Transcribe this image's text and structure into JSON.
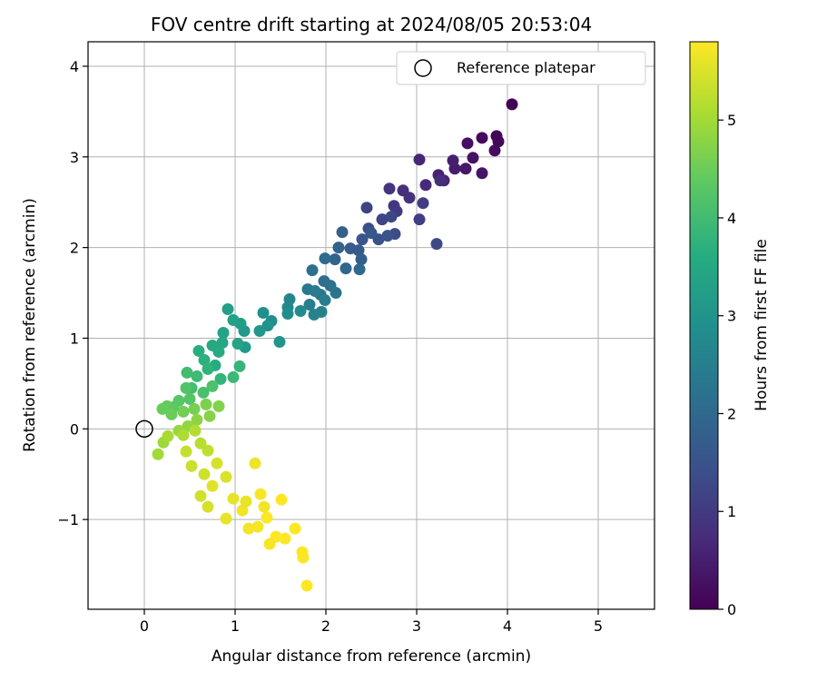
{
  "chart_data": {
    "type": "scatter",
    "title": "FOV centre drift starting at 2024/08/05 20:53:04",
    "xlabel": "Angular distance from reference (arcmin)",
    "ylabel": "Rotation from reference (arcmin)",
    "xlim": [
      -0.62,
      5.62
    ],
    "ylim": [
      -1.99,
      4.27
    ],
    "xticks": [
      0,
      1,
      2,
      3,
      4,
      5
    ],
    "yticks": [
      -1,
      0,
      1,
      2,
      3,
      4
    ],
    "xtick_labels": [
      "0",
      "1",
      "2",
      "3",
      "4",
      "5"
    ],
    "ytick_labels": [
      "−1",
      "0",
      "1",
      "2",
      "3",
      "4"
    ],
    "grid": true,
    "legend": {
      "placement": "upper right",
      "entries": [
        "Reference platepar"
      ]
    },
    "reference_point": {
      "x": 0,
      "y": 0,
      "marker": "open-circle",
      "color": "#000000"
    },
    "colorbar": {
      "label": "Hours from first FF file",
      "range": [
        0,
        5.8
      ],
      "ticks": [
        0,
        1,
        2,
        3,
        4,
        5
      ],
      "tick_labels": [
        "0",
        "1",
        "2",
        "3",
        "4",
        "5"
      ],
      "colormap": "viridis"
    },
    "points": [
      [
        4.05,
        3.58,
        0.0
      ],
      [
        3.88,
        3.23,
        0.05
      ],
      [
        3.9,
        3.17,
        0.1
      ],
      [
        3.72,
        3.21,
        0.15
      ],
      [
        3.86,
        3.07,
        0.2
      ],
      [
        3.56,
        3.15,
        0.25
      ],
      [
        3.62,
        2.99,
        0.3
      ],
      [
        3.72,
        2.82,
        0.35
      ],
      [
        3.54,
        2.87,
        0.4
      ],
      [
        3.42,
        2.87,
        0.45
      ],
      [
        3.4,
        2.96,
        0.5
      ],
      [
        3.24,
        2.8,
        0.55
      ],
      [
        3.3,
        2.74,
        0.6
      ],
      [
        3.03,
        2.97,
        0.65
      ],
      [
        3.1,
        2.69,
        0.7
      ],
      [
        3.26,
        2.74,
        0.75
      ],
      [
        2.85,
        2.63,
        0.8
      ],
      [
        2.92,
        2.55,
        0.85
      ],
      [
        2.7,
        2.65,
        0.9
      ],
      [
        2.75,
        2.46,
        0.95
      ],
      [
        2.78,
        2.4,
        1.0
      ],
      [
        3.07,
        2.49,
        1.05
      ],
      [
        3.03,
        2.31,
        1.1
      ],
      [
        2.45,
        2.44,
        1.15
      ],
      [
        2.62,
        2.31,
        1.2
      ],
      [
        2.72,
        2.34,
        1.25
      ],
      [
        3.22,
        2.04,
        1.3
      ],
      [
        2.76,
        2.15,
        1.35
      ],
      [
        2.47,
        2.21,
        1.4
      ],
      [
        2.58,
        2.09,
        1.45
      ],
      [
        2.68,
        2.13,
        1.5
      ],
      [
        2.4,
        2.09,
        1.55
      ],
      [
        2.5,
        2.16,
        1.6
      ],
      [
        2.36,
        1.97,
        1.65
      ],
      [
        2.27,
        1.99,
        1.7
      ],
      [
        2.39,
        1.87,
        1.75
      ],
      [
        2.18,
        2.17,
        1.8
      ],
      [
        2.14,
        2.0,
        1.85
      ],
      [
        2.1,
        1.87,
        1.9
      ],
      [
        2.22,
        1.77,
        1.95
      ],
      [
        2.37,
        1.76,
        2.0
      ],
      [
        1.99,
        1.88,
        2.05
      ],
      [
        1.98,
        1.63,
        2.1
      ],
      [
        1.85,
        1.75,
        2.15
      ],
      [
        2.05,
        1.58,
        2.2
      ],
      [
        2.11,
        1.5,
        2.25
      ],
      [
        1.94,
        1.48,
        2.3
      ],
      [
        1.8,
        1.54,
        2.35
      ],
      [
        1.88,
        1.52,
        2.4
      ],
      [
        1.99,
        1.42,
        2.45
      ],
      [
        1.82,
        1.37,
        2.5
      ],
      [
        1.95,
        1.29,
        2.55
      ],
      [
        1.87,
        1.26,
        2.6
      ],
      [
        1.6,
        1.43,
        2.65
      ],
      [
        1.58,
        1.34,
        2.7
      ],
      [
        1.72,
        1.3,
        2.75
      ],
      [
        1.58,
        1.27,
        2.8
      ],
      [
        1.4,
        1.19,
        2.85
      ],
      [
        1.31,
        1.28,
        2.9
      ],
      [
        1.36,
        1.14,
        2.95
      ],
      [
        1.49,
        0.96,
        3.0
      ],
      [
        1.27,
        1.08,
        3.05
      ],
      [
        1.1,
        1.08,
        3.1
      ],
      [
        1.11,
        0.9,
        3.15
      ],
      [
        1.06,
        1.16,
        3.2
      ],
      [
        0.92,
        1.32,
        3.25
      ],
      [
        0.98,
        1.2,
        3.3
      ],
      [
        0.87,
        1.06,
        3.35
      ],
      [
        1.03,
        0.94,
        3.4
      ],
      [
        0.86,
        0.95,
        3.45
      ],
      [
        0.75,
        0.92,
        3.5
      ],
      [
        0.82,
        0.85,
        3.55
      ],
      [
        0.78,
        0.7,
        3.6
      ],
      [
        0.6,
        0.86,
        3.65
      ],
      [
        0.66,
        0.76,
        3.7
      ],
      [
        0.7,
        0.66,
        3.75
      ],
      [
        0.84,
        0.55,
        3.8
      ],
      [
        1.05,
        0.69,
        3.85
      ],
      [
        0.98,
        0.57,
        3.9
      ],
      [
        0.58,
        0.58,
        3.95
      ],
      [
        0.47,
        0.62,
        4.0
      ],
      [
        0.52,
        0.45,
        4.05
      ],
      [
        0.65,
        0.4,
        4.1
      ],
      [
        0.75,
        0.47,
        4.15
      ],
      [
        0.46,
        0.45,
        4.2
      ],
      [
        0.5,
        0.33,
        4.25
      ],
      [
        0.38,
        0.31,
        4.3
      ],
      [
        0.32,
        0.24,
        4.35
      ],
      [
        0.25,
        0.25,
        4.4
      ],
      [
        0.2,
        0.22,
        4.45
      ],
      [
        0.3,
        0.16,
        4.5
      ],
      [
        0.43,
        0.19,
        4.55
      ],
      [
        0.55,
        0.22,
        4.6
      ],
      [
        0.68,
        0.27,
        4.65
      ],
      [
        0.82,
        0.25,
        4.7
      ],
      [
        0.72,
        0.14,
        4.75
      ],
      [
        0.58,
        0.1,
        4.8
      ],
      [
        0.48,
        0.03,
        4.85
      ],
      [
        0.38,
        -0.02,
        4.9
      ],
      [
        0.21,
        -0.15,
        4.95
      ],
      [
        0.15,
        -0.28,
        5.0
      ],
      [
        0.26,
        -0.08,
        5.05
      ],
      [
        0.43,
        -0.07,
        5.1
      ],
      [
        0.56,
        -0.02,
        5.15
      ],
      [
        0.62,
        -0.16,
        5.2
      ],
      [
        0.7,
        -0.24,
        5.25
      ],
      [
        0.46,
        -0.25,
        5.3
      ],
      [
        0.52,
        -0.41,
        5.35
      ],
      [
        0.66,
        -0.5,
        5.4
      ],
      [
        0.8,
        -0.38,
        5.45
      ],
      [
        0.9,
        -0.53,
        5.5
      ],
      [
        0.75,
        -0.63,
        5.55
      ],
      [
        0.98,
        -0.77,
        5.6
      ],
      [
        1.22,
        -0.38,
        5.65
      ],
      [
        1.08,
        -0.9,
        5.7
      ],
      [
        1.28,
        -0.72,
        5.75
      ],
      [
        1.35,
        -0.98,
        5.78
      ],
      [
        1.51,
        -0.78,
        5.8
      ],
      [
        1.45,
        -1.19,
        5.8
      ],
      [
        1.55,
        -1.21,
        5.8
      ],
      [
        1.66,
        -1.1,
        5.8
      ],
      [
        1.74,
        -1.36,
        5.8
      ],
      [
        1.75,
        -1.42,
        5.8
      ],
      [
        1.79,
        -1.73,
        5.8
      ],
      [
        0.9,
        -0.99,
        5.6
      ],
      [
        1.15,
        -1.1,
        5.7
      ],
      [
        1.38,
        -1.27,
        5.75
      ],
      [
        1.25,
        -1.08,
        5.72
      ],
      [
        1.32,
        -0.86,
        5.7
      ],
      [
        1.12,
        -0.8,
        5.62
      ],
      [
        0.62,
        -0.74,
        5.4
      ],
      [
        0.7,
        -0.86,
        5.45
      ]
    ]
  }
}
